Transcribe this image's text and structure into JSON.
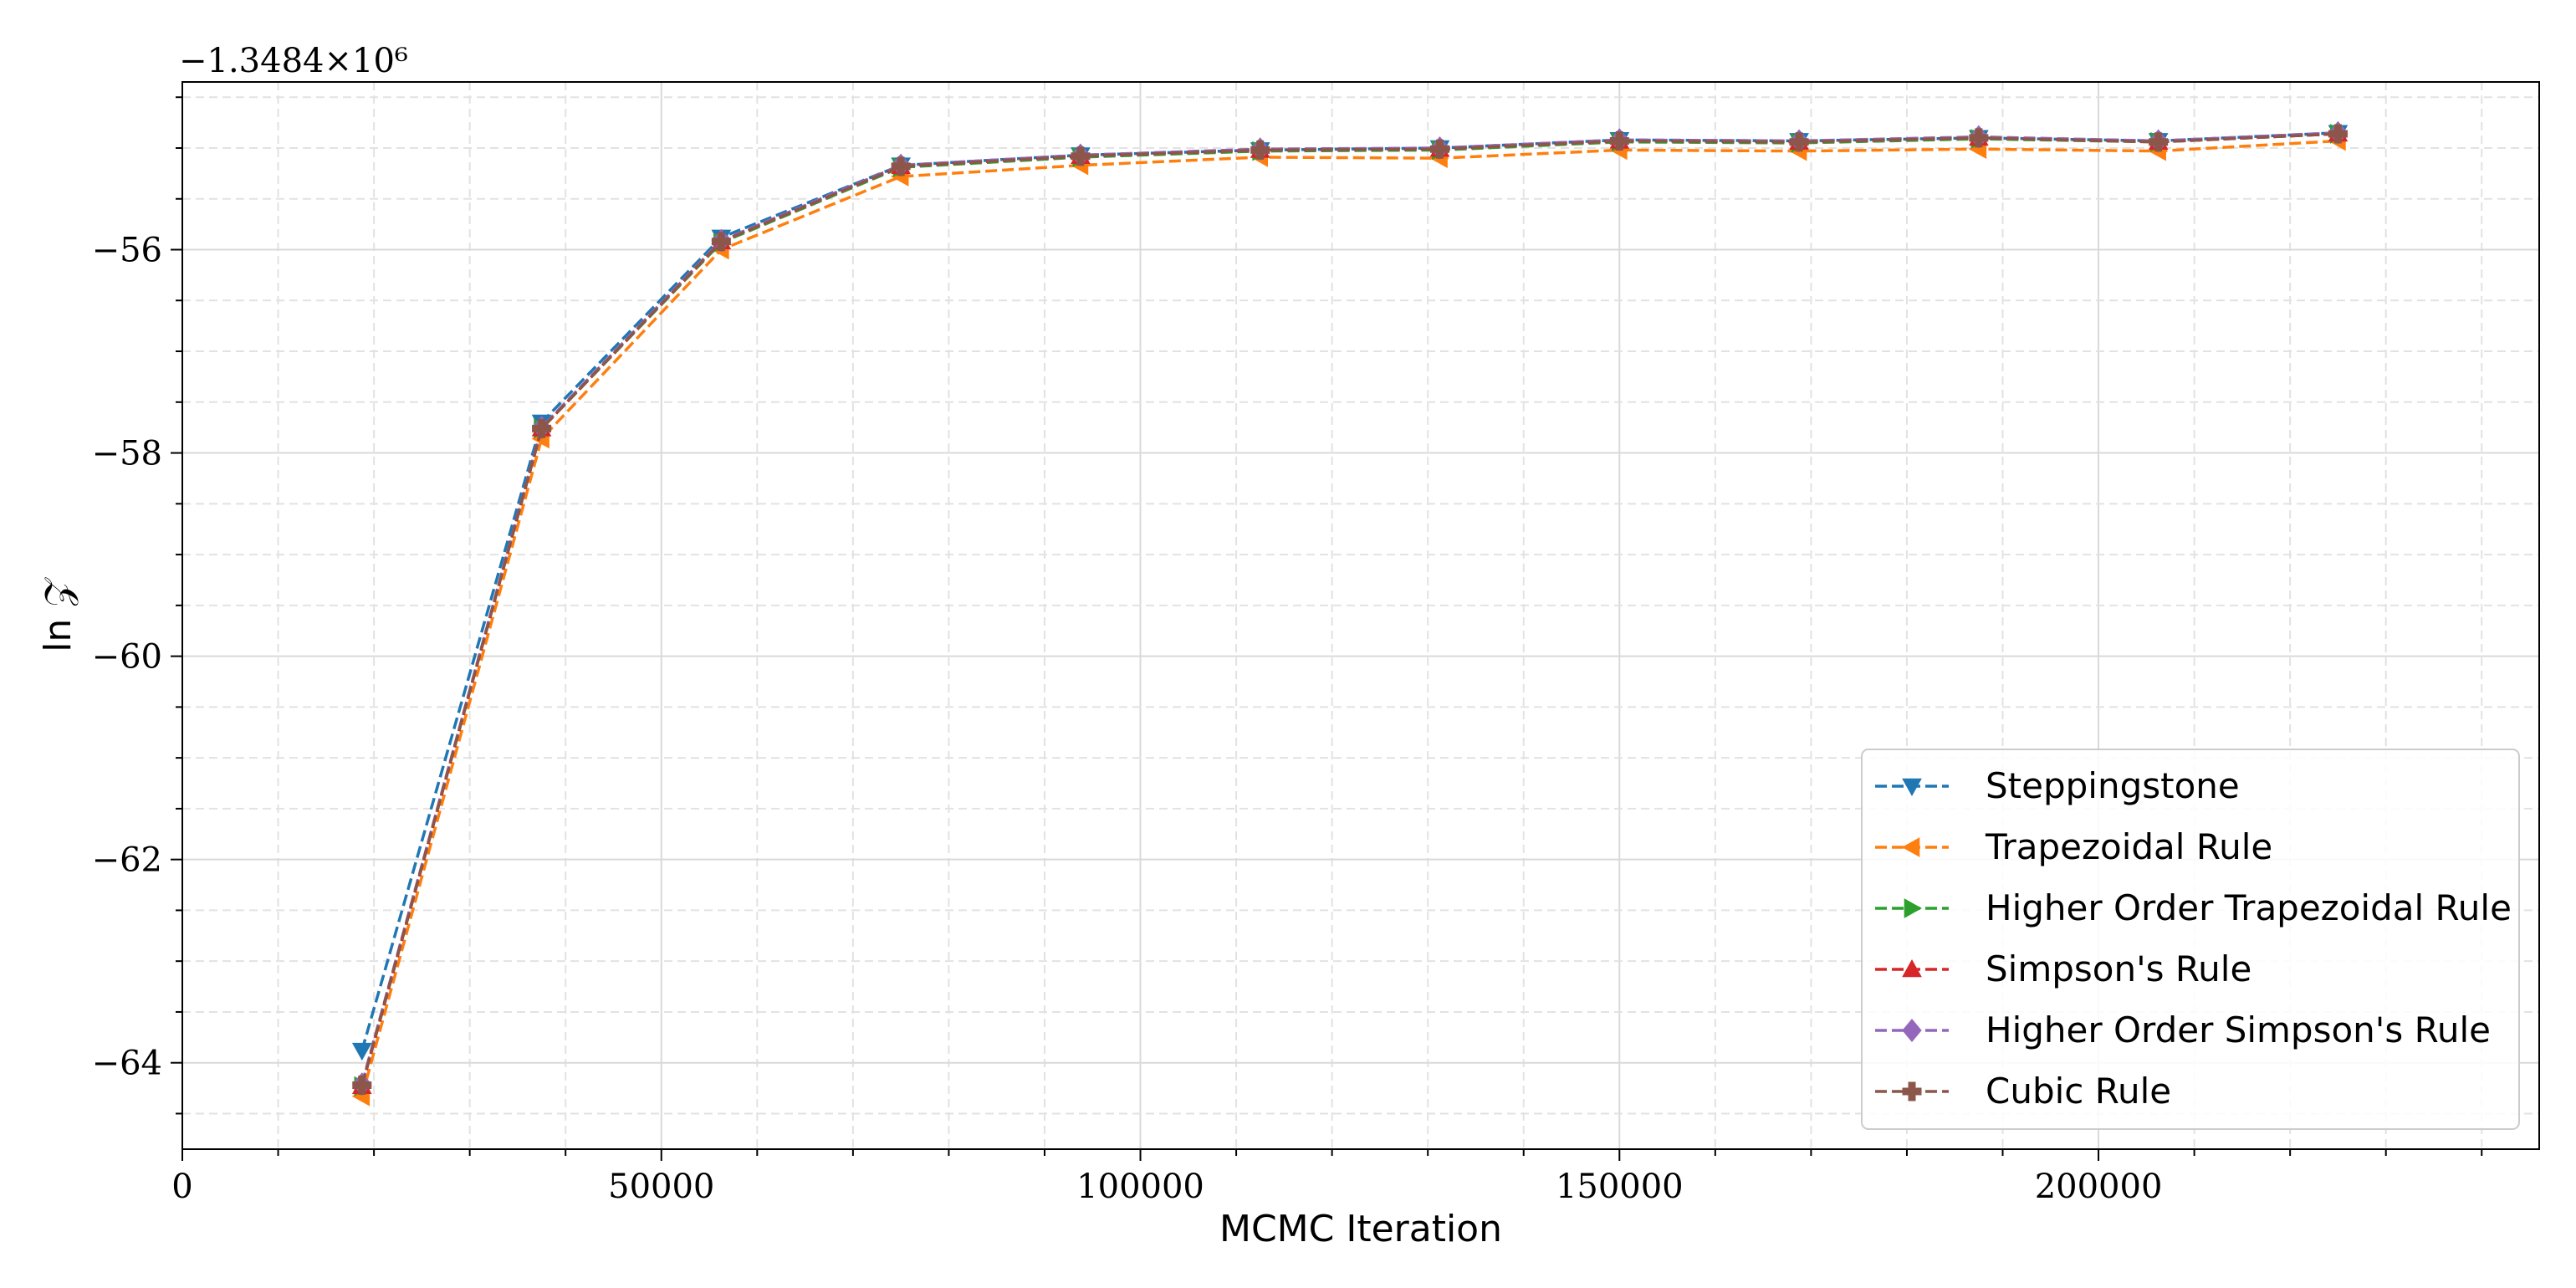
{
  "chart_data": {
    "type": "line",
    "title": "",
    "xlabel": "MCMC Iteration",
    "ylabel": "ln 𝒵",
    "y_offset_label": "−1.3484×10⁶",
    "xlim": [
      0,
      246000
    ],
    "ylim": [
      -64.85,
      -54.35
    ],
    "xticks": [
      0,
      50000,
      100000,
      150000,
      200000
    ],
    "xtick_labels": [
      "0",
      "50000",
      "100000",
      "150000",
      "200000"
    ],
    "yticks": [
      -64,
      -62,
      -60,
      -58,
      -56
    ],
    "ytick_labels": [
      "−64",
      "−62",
      "−60",
      "−58",
      "−56"
    ],
    "grid": true,
    "legend_position": "lower-right",
    "x": [
      18750,
      37500,
      56250,
      75000,
      93750,
      112500,
      131250,
      150000,
      168750,
      187500,
      206250,
      225000
    ],
    "series": [
      {
        "name": "Steppingstone",
        "color": "#1f77b4",
        "marker": "triangle-down",
        "values": [
          -63.88,
          -57.7,
          -55.88,
          -55.17,
          -55.07,
          -55.02,
          -55.0,
          -54.92,
          -54.93,
          -54.9,
          -54.93,
          -54.85
        ]
      },
      {
        "name": "Trapezoidal Rule",
        "color": "#ff7f0e",
        "marker": "triangle-left",
        "values": [
          -64.33,
          -57.86,
          -56.0,
          -55.28,
          -55.17,
          -55.09,
          -55.1,
          -55.02,
          -55.03,
          -55.01,
          -55.03,
          -54.93
        ]
      },
      {
        "name": "Higher Order Trapezoidal Rule",
        "color": "#2ca02c",
        "marker": "triangle-right",
        "values": [
          -64.23,
          -57.76,
          -55.93,
          -55.19,
          -55.09,
          -55.03,
          -55.02,
          -54.94,
          -54.95,
          -54.91,
          -54.94,
          -54.86
        ]
      },
      {
        "name": "Simpson's Rule",
        "color": "#d62728",
        "marker": "triangle-up",
        "values": [
          -64.23,
          -57.76,
          -55.92,
          -55.18,
          -55.08,
          -55.02,
          -55.01,
          -54.93,
          -54.94,
          -54.9,
          -54.94,
          -54.86
        ]
      },
      {
        "name": "Higher Order Simpson's Rule",
        "color": "#9467bd",
        "marker": "diamond",
        "values": [
          -64.21,
          -57.75,
          -55.91,
          -55.17,
          -55.07,
          -55.01,
          -55.0,
          -54.92,
          -54.93,
          -54.89,
          -54.93,
          -54.85
        ]
      },
      {
        "name": "Cubic Rule",
        "color": "#8c564b",
        "marker": "plus",
        "values": [
          -64.22,
          -57.76,
          -55.92,
          -55.18,
          -55.08,
          -55.02,
          -55.01,
          -54.93,
          -54.94,
          -54.9,
          -54.94,
          -54.86
        ]
      }
    ]
  }
}
